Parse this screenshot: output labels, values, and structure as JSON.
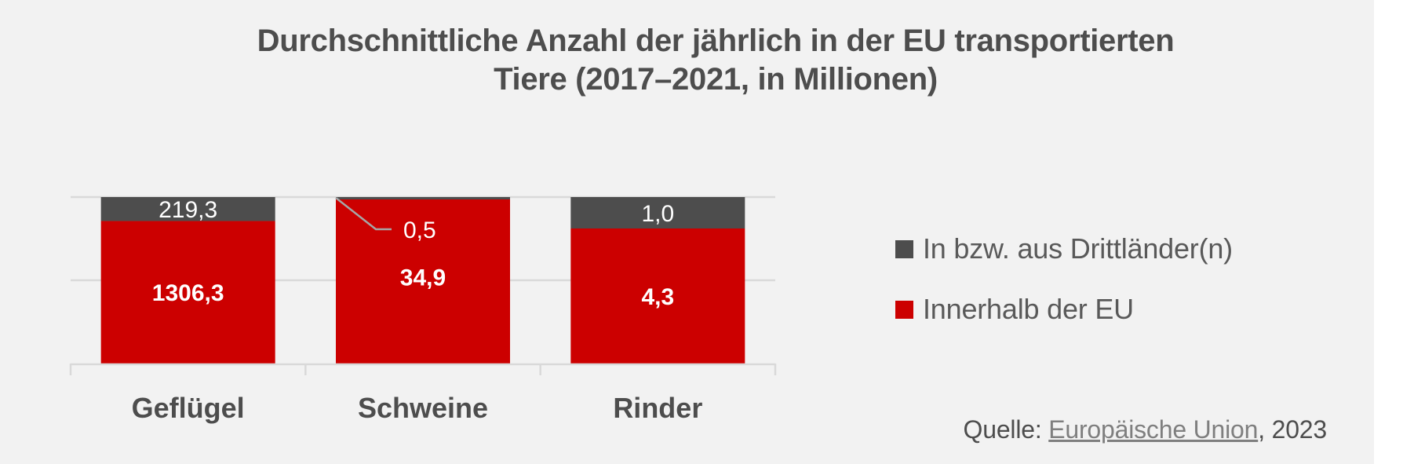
{
  "colors": {
    "background": "#f2f2f2",
    "dritt": "#4d4d4d",
    "innerhalb": "#cc0000",
    "gridline": "#d9d9d9",
    "leader": "#a6a6a6",
    "text": "#4d4d4d"
  },
  "chart_data": {
    "type": "bar",
    "stacked": "percent",
    "title": "Durchschnittliche Anzahl der jährlich in der EU transportierten Tiere (2017–2021, in Millionen)",
    "title_lines": [
      "Durchschnittliche Anzahl der jährlich in der EU transportierten",
      "Tiere (2017–2021, in Millionen)"
    ],
    "categories": [
      "Geflügel",
      "Schweine",
      "Rinder"
    ],
    "series": [
      {
        "name": "Innerhalb der EU",
        "color_key": "innerhalb",
        "values": [
          1306.3,
          34.9,
          4.3
        ],
        "labels": [
          "1306,3",
          "34,9",
          "4,3"
        ]
      },
      {
        "name": "In bzw. aus Drittländer(n)",
        "color_key": "dritt",
        "values": [
          219.3,
          0.5,
          1.0
        ],
        "labels": [
          "219,3",
          "0,5",
          "1,0"
        ]
      }
    ],
    "xlabel": "",
    "ylabel": "",
    "ylim": [
      0,
      100
    ],
    "y_axis_visible": false,
    "gridlines": [
      0,
      50,
      100
    ],
    "grid": true,
    "legend_position": "right"
  },
  "legend": {
    "items": [
      {
        "label": "In bzw. aus Drittländer(n)",
        "color_key": "dritt"
      },
      {
        "label": "Innerhalb der EU",
        "color_key": "innerhalb"
      }
    ]
  },
  "source": {
    "prefix": "Quelle: ",
    "link_text": "Europäische Union",
    "suffix": ", 2023"
  }
}
